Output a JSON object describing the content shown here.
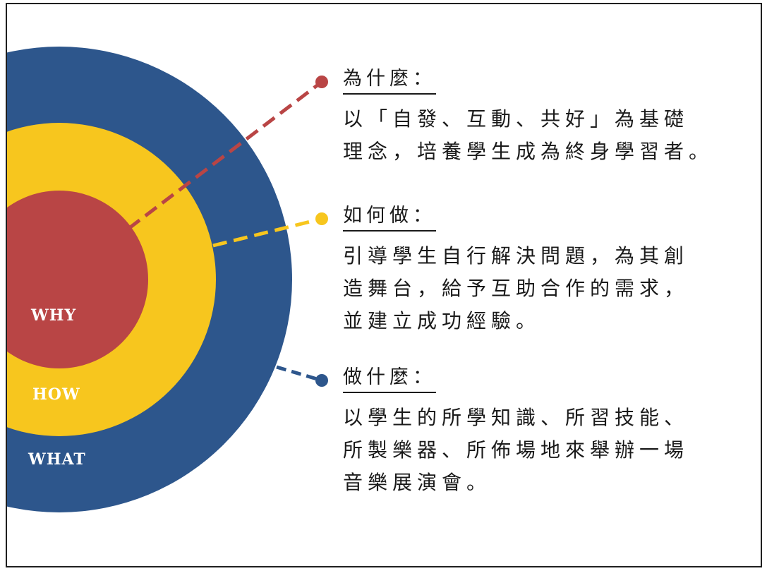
{
  "colors": {
    "outer": "#2d568c",
    "middle": "#f7c61e",
    "inner": "#b94545",
    "line_why": "#b94545",
    "line_how": "#f7c61e",
    "line_what": "#2d568c"
  },
  "rings": {
    "why": "WHY",
    "how": "HOW",
    "what": "WHAT"
  },
  "sections": {
    "why": {
      "heading": "為什麼：",
      "lines": [
        "以「自發、互動、共好」為基礎",
        "理念，培養學生成為終身學習者。"
      ]
    },
    "how": {
      "heading": "如何做：",
      "lines": [
        "引導學生自行解決問題，為其創",
        "造舞台，給予互助合作的需求，",
        "並建立成功經驗。"
      ]
    },
    "what": {
      "heading": "做什麼：",
      "lines": [
        "以學生的所學知識、所習技能、",
        "所製樂器、所佈場地來舉辦一場",
        "音樂展演會。"
      ]
    }
  }
}
